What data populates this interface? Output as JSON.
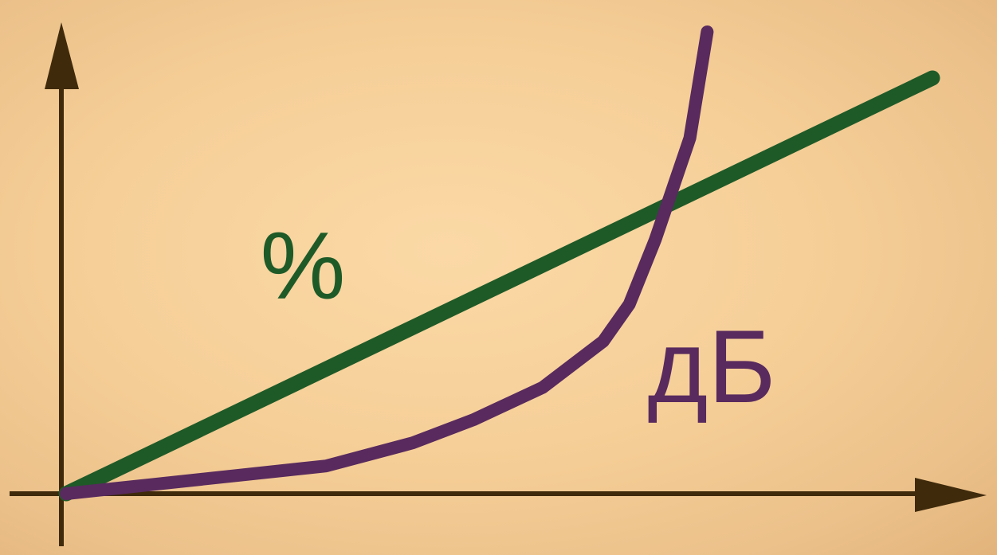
{
  "chart_data": {
    "type": "line",
    "title": "",
    "xlabel": "",
    "ylabel": "",
    "grid": false,
    "legend": "none",
    "xlim": [
      0,
      100
    ],
    "ylim": [
      0,
      100
    ],
    "series": [
      {
        "name": "%",
        "color": "#1e5a28",
        "x": [
          0,
          100
        ],
        "y": [
          0,
          90
        ]
      },
      {
        "name": "дБ",
        "color": "#582a5e",
        "x": [
          0,
          10,
          20,
          30,
          40,
          47,
          55,
          62,
          65,
          68,
          72,
          74
        ],
        "y": [
          0,
          2,
          4,
          6,
          11,
          16,
          23,
          33,
          41,
          55,
          77,
          100
        ]
      }
    ]
  },
  "colors": {
    "axis": "#3f2a0c",
    "background": "#f6cf98"
  }
}
